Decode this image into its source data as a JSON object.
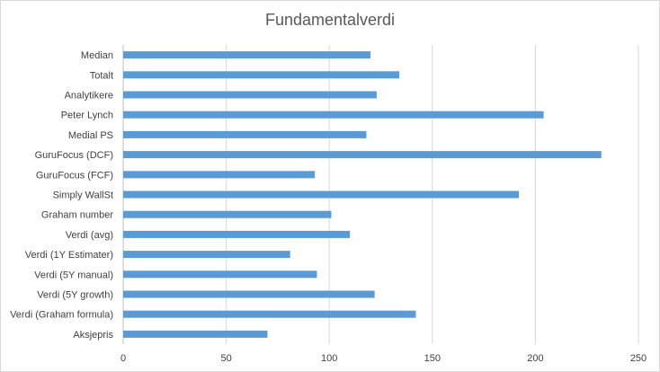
{
  "chart_data": {
    "type": "bar",
    "orientation": "horizontal",
    "title": "Fundamentalverdi",
    "xlabel": "",
    "ylabel": "",
    "xlim": [
      0,
      250
    ],
    "x_ticks": [
      0,
      50,
      100,
      150,
      200,
      250
    ],
    "grid": "vertical",
    "legend": "none",
    "categories": [
      "Median",
      "Totalt",
      "Analytikere",
      "Peter Lynch",
      "Medial PS",
      "GuruFocus (DCF)",
      "GuruFocus (FCF)",
      "Simply WallSt",
      "Graham number",
      "Verdi (avg)",
      "Verdi (1Y Estimater)",
      "Verdi (5Y manual)",
      "Verdi (5Y growth)",
      "Verdi (Graham formula)",
      "Aksjepris"
    ],
    "values": [
      120,
      134,
      123,
      204,
      118,
      232,
      93,
      192,
      101,
      110,
      81,
      94,
      122,
      142,
      70
    ],
    "colors": {
      "bar": "#5b9bd5",
      "grid": "#d9d9d9",
      "axis": "#bfbfbf",
      "text": "#404040",
      "title": "#595959"
    }
  }
}
